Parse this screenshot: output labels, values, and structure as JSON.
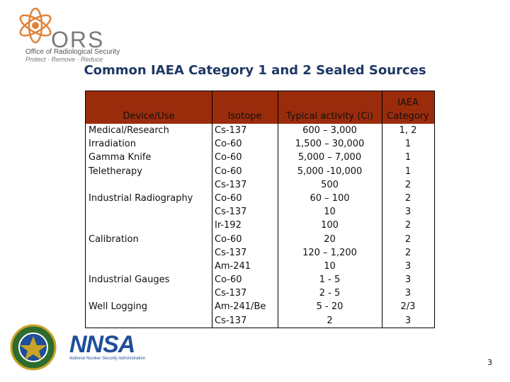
{
  "branding": {
    "ors_word": "ORS",
    "ors_line1": "Office of Radiological Security",
    "ors_line2": "Protect · Remove · Reduce",
    "nnsa_word": "NNSA",
    "nnsa_line": "National Nuclear Security Administration"
  },
  "title": "Common IAEA Category 1 and 2 Sealed Sources",
  "table": {
    "headers": {
      "device": "Device/Use",
      "isotope": "Isotope",
      "activity": "Typical activity (Ci)",
      "category_line1": "IAEA",
      "category_line2": "Category"
    },
    "devices": {
      "d1": "Medical/Research",
      "d2": "Irradiation",
      "d3": "Gamma Knife",
      "d4": "Teletherapy",
      "d5": "Industrial Radiography",
      "d6": "Calibration",
      "d7": "Industrial Gauges",
      "d8": "Well Logging"
    },
    "isotopes": [
      "Cs-137",
      "Co-60",
      "Co-60",
      "Co-60",
      "Cs-137",
      "Co-60",
      "Cs-137",
      "Ir-192",
      "Co-60",
      "Cs-137",
      "Am-241",
      "Co-60",
      "Cs-137",
      "Am-241/Be",
      "Cs-137"
    ],
    "activities": [
      "600 – 3,000",
      "1,500 – 30,000",
      "5,000 – 7,000",
      "5,000 -10,000",
      "500",
      "60 – 100",
      "10",
      "100",
      "20",
      "120 – 1,200",
      "10",
      "1 - 5",
      "2 - 5",
      "5 - 20",
      "2"
    ],
    "categories": [
      "1, 2",
      "1",
      "1",
      "1",
      "2",
      "2",
      "3",
      "2",
      "2",
      "2",
      "3",
      "3",
      "3",
      "2/3",
      "3"
    ]
  },
  "colors": {
    "header_bg": "#9b2c0b",
    "title": "#1f3864",
    "ors_accent": "#e0833a",
    "nnsa_blue": "#1f4e9a"
  },
  "page_number": "3"
}
